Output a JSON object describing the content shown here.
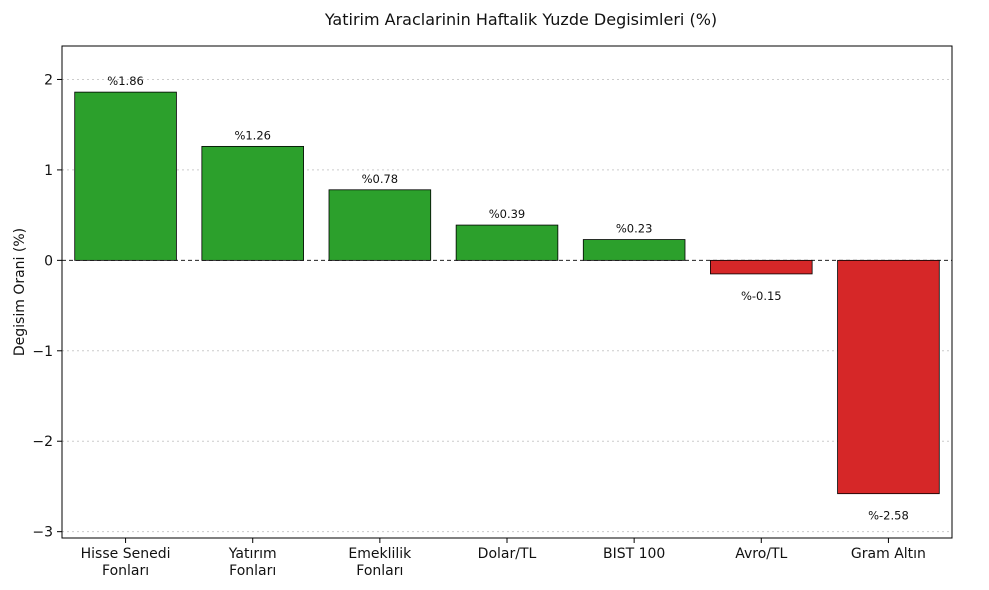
{
  "chart_data": {
    "type": "bar",
    "title": "Yatirim Araclarinin Haftalik Yuzde Degisimleri (%)",
    "xlabel": "",
    "ylabel": "Degisim Orani (%)",
    "ylim": [
      -3.07,
      2.37
    ],
    "yticks": [
      -3,
      -2,
      -1,
      0,
      1,
      2
    ],
    "ytick_labels": [
      "−3",
      "−2",
      "−1",
      "0",
      "1",
      "2"
    ],
    "grid": "y-dotted",
    "zero_line": "dashed",
    "categories": [
      [
        "Hisse Senedi",
        "Fonları"
      ],
      [
        "Yatırım",
        "Fonları"
      ],
      [
        "Emeklilik",
        "Fonları"
      ],
      [
        "Dolar/TL"
      ],
      [
        "BIST 100"
      ],
      [
        "Avro/TL"
      ],
      [
        "Gram Altın"
      ]
    ],
    "values": [
      1.86,
      1.26,
      0.78,
      0.39,
      0.23,
      -0.15,
      -2.58
    ],
    "data_labels": [
      "%1.86",
      "%1.26",
      "%0.78",
      "%0.39",
      "%0.23",
      "%-0.15",
      "%-2.58"
    ],
    "colors": {
      "positive": "#2ca02c",
      "negative": "#d62728",
      "edge": "#000000"
    }
  }
}
